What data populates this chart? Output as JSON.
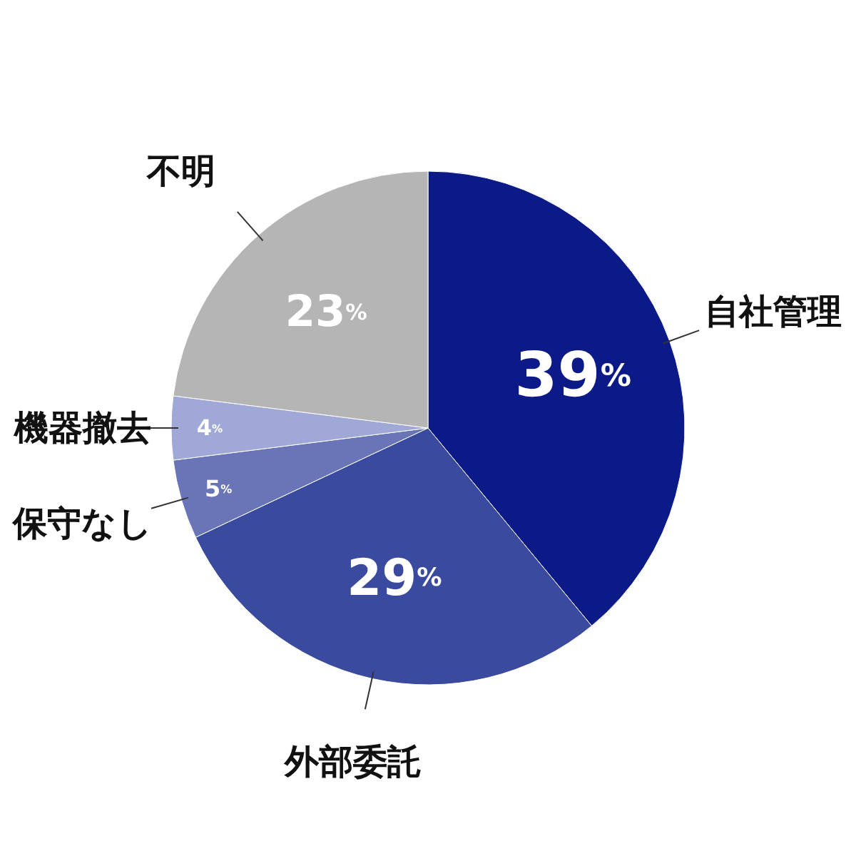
{
  "chart_data": {
    "type": "pie",
    "categories": [
      "自社管理",
      "外部委託",
      "保守なし",
      "機器撤去",
      "不明"
    ],
    "values": [
      39,
      29,
      5,
      4,
      23
    ],
    "colors": [
      "#0b1a87",
      "#3a4a9e",
      "#6a75b8",
      "#a0a8d8",
      "#b5b5b5"
    ],
    "value_labels": [
      "39%",
      "29%",
      "5%",
      "4%",
      "23%"
    ]
  }
}
